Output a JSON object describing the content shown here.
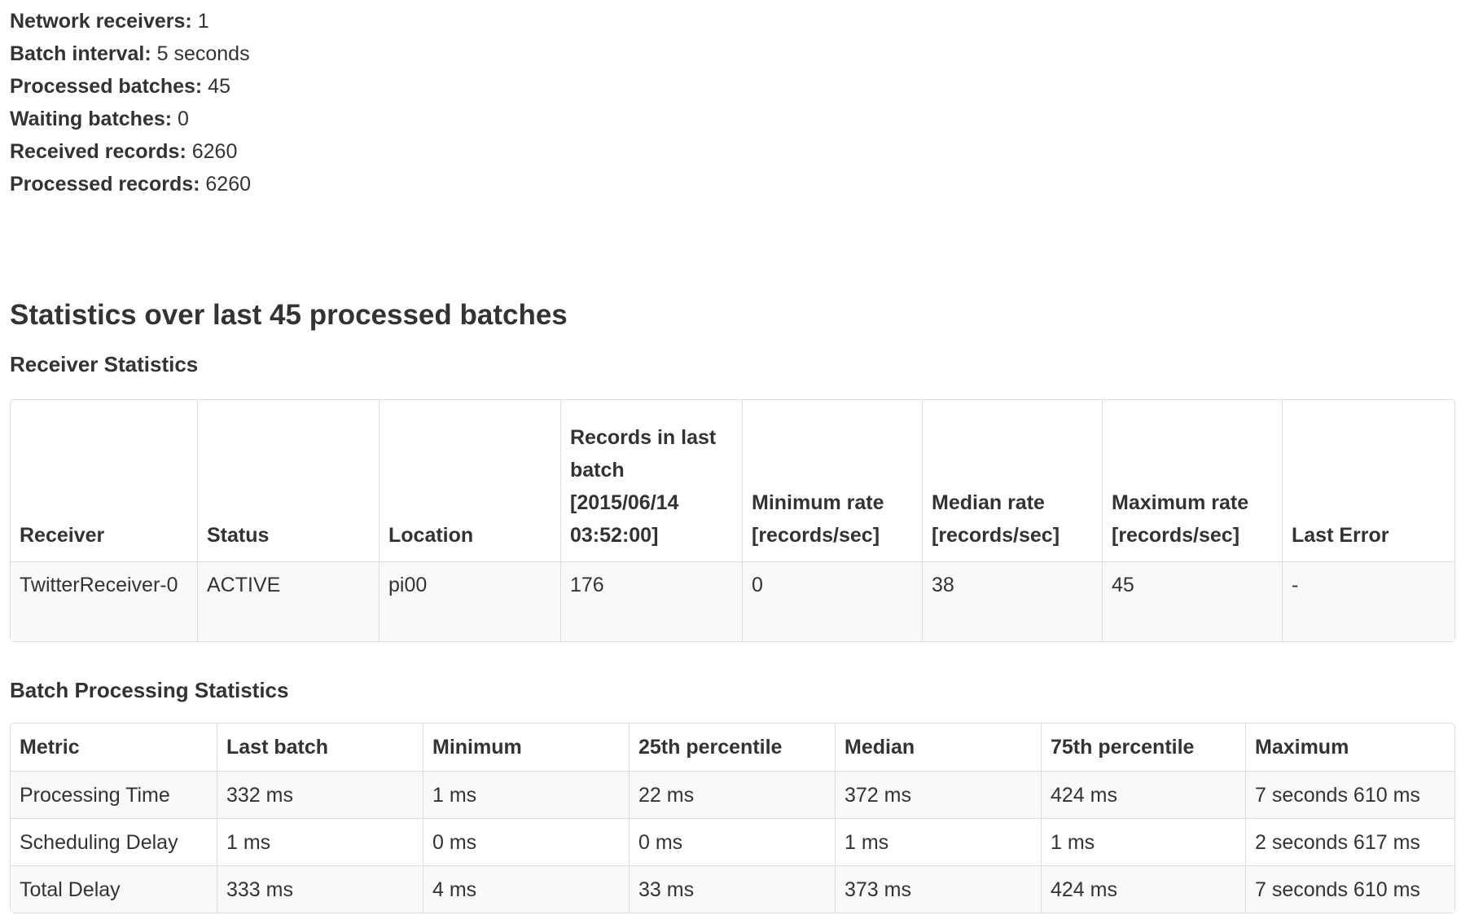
{
  "summary": [
    {
      "label": "Network receivers:",
      "value": "1"
    },
    {
      "label": "Batch interval:",
      "value": "5 seconds"
    },
    {
      "label": "Processed batches:",
      "value": "45"
    },
    {
      "label": "Waiting batches:",
      "value": "0"
    },
    {
      "label": "Received records:",
      "value": "6260"
    },
    {
      "label": "Processed records:",
      "value": "6260"
    }
  ],
  "stats_title": "Statistics over last 45 processed batches",
  "receiver_stats": {
    "title": "Receiver Statistics",
    "columns": [
      "Receiver",
      "Status",
      "Location",
      "Records in last batch [2015/06/14 03:52:00]",
      "Minimum rate [records/sec]",
      "Median rate [records/sec]",
      "Maximum rate [records/sec]",
      "Last Error"
    ],
    "rows": [
      [
        "TwitterReceiver-0",
        "ACTIVE",
        "pi00",
        "176",
        "0",
        "38",
        "45",
        "-"
      ]
    ]
  },
  "batch_stats": {
    "title": "Batch Processing Statistics",
    "columns": [
      "Metric",
      "Last batch",
      "Minimum",
      "25th percentile",
      "Median",
      "75th percentile",
      "Maximum"
    ],
    "rows": [
      [
        "Processing Time",
        "332 ms",
        "1 ms",
        "22 ms",
        "372 ms",
        "424 ms",
        "7 seconds 610 ms"
      ],
      [
        "Scheduling Delay",
        "1 ms",
        "0 ms",
        "0 ms",
        "1 ms",
        "1 ms",
        "2 seconds 617 ms"
      ],
      [
        "Total Delay",
        "333 ms",
        "4 ms",
        "33 ms",
        "373 ms",
        "424 ms",
        "7 seconds 610 ms"
      ]
    ]
  }
}
